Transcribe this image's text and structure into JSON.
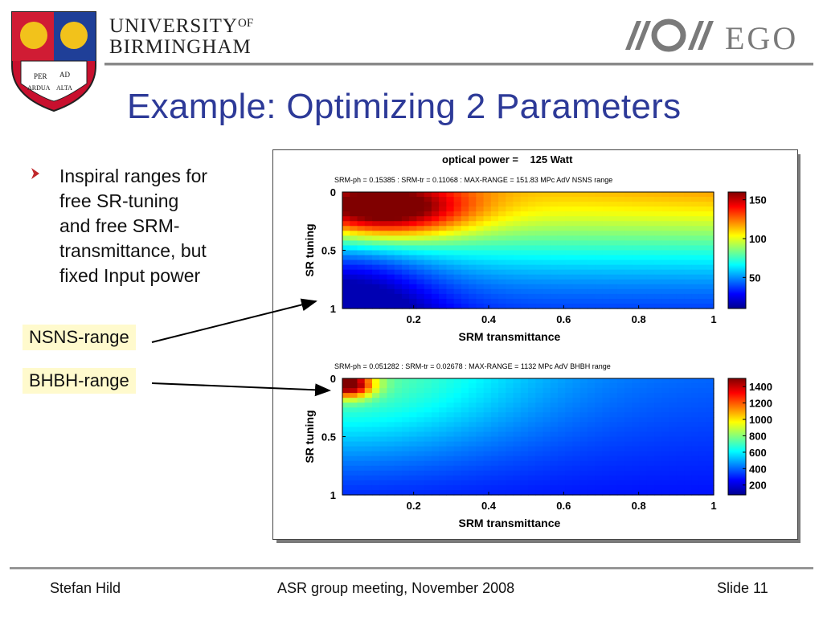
{
  "header": {
    "university_line1": "UNIVERSITY",
    "university_of": "OF",
    "university_line2": "BIRMINGHAM",
    "shield_motto_1": "PER",
    "shield_motto_2": "AD",
    "shield_motto_3": "ARDUA",
    "shield_motto_4": "ALTA",
    "ego_text": "EGO"
  },
  "title": "Example: Optimizing 2 Parameters",
  "bullet": {
    "lines": [
      "Inspiral ranges for",
      "free SR-tuning",
      "and free SRM-",
      "transmittance, but",
      "fixed Input power"
    ]
  },
  "callouts": {
    "nsns": "NSNS-range",
    "bhbh": "BHBH-range"
  },
  "figure": {
    "super_title": "optical power =    125 Watt"
  },
  "chart_data": [
    {
      "type": "heatmap",
      "title": "SRM-ph  = 0.15385 : SRM-tr = 0.11068 : MAX-RANGE =      151.83 MPc       AdV NSNS range",
      "xlabel": "SRM transmittance",
      "ylabel": "SR tuning",
      "xlim": [
        0.01,
        1
      ],
      "ylim": [
        0,
        1
      ],
      "y_reversed": true,
      "xticks": [
        "0.2",
        "0.4",
        "0.6",
        "0.8",
        "1"
      ],
      "xtick_values": [
        0.2,
        0.4,
        0.6,
        0.8,
        1.0
      ],
      "yticks": [
        "0",
        "0.5",
        "1"
      ],
      "ytick_values": [
        0,
        0.5,
        1
      ],
      "colorbar": {
        "min": 10,
        "max": 160,
        "ticks": [
          "150",
          "100",
          "50"
        ],
        "tick_values": [
          150,
          100,
          50
        ]
      },
      "peak": {
        "x": 0.11068,
        "y": 0.15385,
        "value": 151.83
      },
      "colormap": "jet"
    },
    {
      "type": "heatmap",
      "title": "SRM-ph  = 0.051282 : SRM-tr = 0.02678 : MAX-RANGE =       1132 MPc       AdV BHBH range",
      "xlabel": "SRM transmittance",
      "ylabel": "SR tuning",
      "xlim": [
        0.01,
        1
      ],
      "ylim": [
        0,
        1
      ],
      "y_reversed": true,
      "xticks": [
        "0.2",
        "0.4",
        "0.6",
        "0.8",
        "1"
      ],
      "xtick_values": [
        0.2,
        0.4,
        0.6,
        0.8,
        1.0
      ],
      "yticks": [
        "0",
        "0.5",
        "1"
      ],
      "ytick_values": [
        0,
        0.5,
        1
      ],
      "colorbar": {
        "min": 80,
        "max": 1500,
        "ticks": [
          "1400",
          "1200",
          "1000",
          "800",
          "600",
          "400",
          "200"
        ],
        "tick_values": [
          1400,
          1200,
          1000,
          800,
          600,
          400,
          200
        ]
      },
      "peak": {
        "x": 0.02678,
        "y": 0.051282,
        "value": 1132
      },
      "colormap": "jet"
    }
  ],
  "footer": {
    "author": "Stefan Hild",
    "event": "ASR group meeting, November 2008",
    "slide": "Slide 11"
  }
}
